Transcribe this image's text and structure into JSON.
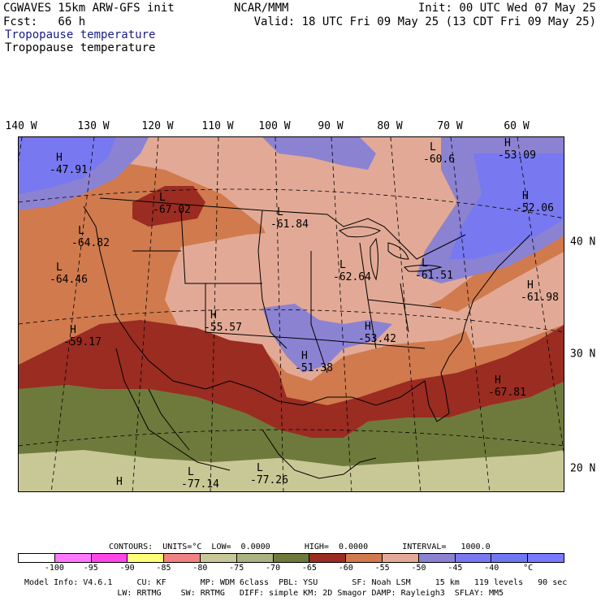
{
  "header": {
    "line1_left": "CGWAVES 15km ARW-GFS init",
    "line1_center": "NCAR/MMM",
    "line1_right": "Init: 00 UTC Wed 07 May 25",
    "line2_left": "Fcst:   66 h",
    "line2_right": "Valid: 18 UTC Fri 09 May 25 (13 CDT Fri 09 May 25)",
    "field_title_colored": "Tropopause temperature",
    "field_title": "Tropopause temperature"
  },
  "longitude_labels": [
    "140 W",
    "130 W",
    "120 W",
    "110 W",
    "100 W",
    "90 W",
    "80 W",
    "70 W",
    "60 W"
  ],
  "latitude_labels": [
    "40 N",
    "30 N",
    "20 N"
  ],
  "map_labels": [
    {
      "kind": "H",
      "value": "-47.91"
    },
    {
      "kind": "L",
      "value": "-67.02"
    },
    {
      "kind": "L",
      "value": "-64.82"
    },
    {
      "kind": "L",
      "value": "-61.84"
    },
    {
      "kind": "L",
      "value": "-64.46"
    },
    {
      "kind": "H",
      "value": "-59.17"
    },
    {
      "kind": "H",
      "value": "-55.57"
    },
    {
      "kind": "H",
      "value": "-51.38"
    },
    {
      "kind": "L",
      "value": "-62.64"
    },
    {
      "kind": "L",
      "value": "-61.51"
    },
    {
      "kind": "H",
      "value": "-53.42"
    },
    {
      "kind": "L",
      "value": "-60.6"
    },
    {
      "kind": "H",
      "value": "-53.09"
    },
    {
      "kind": "H",
      "value": "-52.06"
    },
    {
      "kind": "H",
      "value": "-61.98"
    },
    {
      "kind": "H",
      "value": "-67.81"
    },
    {
      "kind": "H",
      "value": ""
    },
    {
      "kind": "L",
      "value": "-77.14"
    },
    {
      "kind": "L",
      "value": "-77.26"
    }
  ],
  "contours_line": "CONTOURS:  UNITS=°C  LOW=  0.0000       HIGH=  0.0000       INTERVAL=   1000.0",
  "colorbar": {
    "colors": [
      "#ffffff",
      "#ff78ff",
      "#ff46e6",
      "#ffff78",
      "#f08282",
      "#c8c896",
      "#aab482",
      "#6e7a3c",
      "#9a2c22",
      "#d07a4e",
      "#e2aa96",
      "#8c82d2",
      "#7878f0",
      "#6e78f0",
      "#7a7aff"
    ],
    "tick_labels": [
      "-100",
      "-95",
      "-90",
      "-85",
      "-80",
      "-75",
      "-70",
      "-65",
      "-60",
      "-55",
      "-50",
      "-45",
      "-40",
      "°C"
    ]
  },
  "model_info": {
    "line1": "Model Info: V4.6.1     CU: KF       MP: WDM 6class  PBL: YSU       SF: Noah LSM     15 km   119 levels   90 sec",
    "line2": "                   LW: RRTMG    SW: RRTMG   DIFF: simple KM: 2D Smagor DAMP: Rayleigh3  SFLAY: MM5"
  },
  "colors": {
    "light_salmon": "#e2aa96",
    "salmon": "#d07a4e",
    "dark_red": "#9a2c22",
    "olive": "#6e7a3c",
    "khaki": "#c8c896",
    "periwinkle": "#8c82d2",
    "blue": "#7878f0"
  }
}
